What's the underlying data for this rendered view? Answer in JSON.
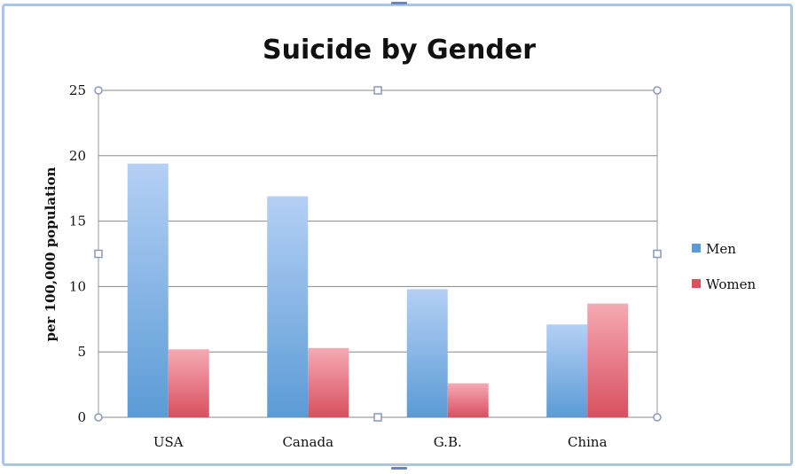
{
  "colors": {
    "men": "#5b9bd5",
    "men_light": "#b4d0f5",
    "women": "#d9505f",
    "women_light": "#f5aab4",
    "gridline": "#888888",
    "frame": "#a9c6e8",
    "handle": "#8899bb"
  },
  "chart_data": {
    "type": "bar",
    "title": "Suicide by Gender",
    "xlabel": "",
    "ylabel": "per 100,000 population",
    "ylim": [
      0,
      25
    ],
    "yticks": [
      0,
      5,
      10,
      15,
      20,
      25
    ],
    "grid": true,
    "legend_position": "right",
    "categories": [
      "USA",
      "Canada",
      "G.B.",
      "China"
    ],
    "series": [
      {
        "name": "Men",
        "values": [
          19.4,
          16.9,
          9.8,
          7.1
        ]
      },
      {
        "name": "Women",
        "values": [
          5.2,
          5.3,
          2.6,
          8.7
        ]
      }
    ]
  }
}
